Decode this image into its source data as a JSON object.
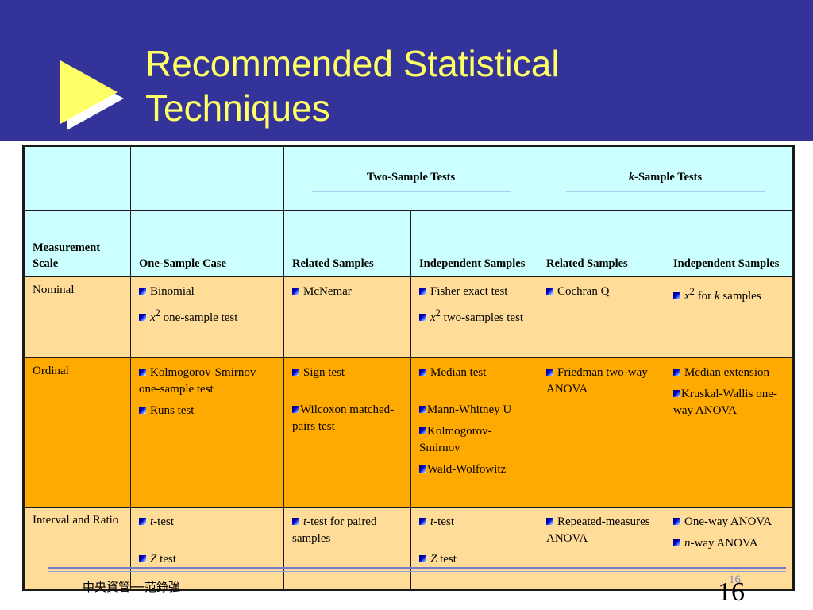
{
  "title": {
    "line1": "Recommended Statistical",
    "line2": "Techniques"
  },
  "table": {
    "group_headers": {
      "two_sample": "Two-Sample Tests",
      "k_sample_k": "k",
      "k_sample_rest": "-Sample Tests"
    },
    "sub_headers": {
      "measurement_scale": "Measurement Scale",
      "one_sample": "One-Sample Case",
      "two_related": "Related Samples",
      "two_independent": "Independent Samples",
      "k_related": "Related Samples",
      "k_independent": "Independent Samples"
    },
    "rows": {
      "nominal": {
        "scale": "Nominal",
        "one_sample": [
          "Binomial",
          "one-sample test"
        ],
        "two_related": [
          "McNemar"
        ],
        "two_independent": [
          "Fisher exact test",
          "two-samples test"
        ],
        "k_related": [
          "Cochran Q"
        ],
        "k_independent": [
          "for",
          "samples"
        ]
      },
      "ordinal": {
        "scale": "Ordinal",
        "one_sample": [
          "Kolmogorov-Smirnov one-sample test",
          "Runs test"
        ],
        "two_related": [
          "Sign test",
          "Wilcoxon matched-pairs test"
        ],
        "two_independent": [
          "Median test",
          "Mann-Whitney U",
          "Kolmogorov-Smirnov",
          "Wald-Wolfowitz"
        ],
        "k_related": [
          "Friedman two-way ANOVA"
        ],
        "k_independent": [
          "Median extension",
          "Kruskal-Wallis one-way ANOVA"
        ]
      },
      "interval": {
        "scale": "Interval and Ratio",
        "one_sample": [
          "-test",
          "test"
        ],
        "two_related": [
          "-test for paired samples"
        ],
        "two_independent": [
          "-test",
          "test"
        ],
        "k_related": [
          "Repeated-measures ANOVA"
        ],
        "k_independent": [
          "One-way ANOVA",
          "-way ANOVA"
        ]
      }
    },
    "symbols": {
      "x": "x",
      "sup2": "2",
      "k": "k",
      "t": "t",
      "z": "Z",
      "n": "n"
    }
  },
  "footer": {
    "text": "中央資管──范錚強",
    "page_small": "16",
    "page": "16"
  },
  "colors": {
    "header_bg": "#333399",
    "title_text": "#ffff66",
    "table_header_bg": "#ccffff",
    "row_light_bg": "#ffdd99",
    "row_dark_bg": "#ffaa00"
  }
}
